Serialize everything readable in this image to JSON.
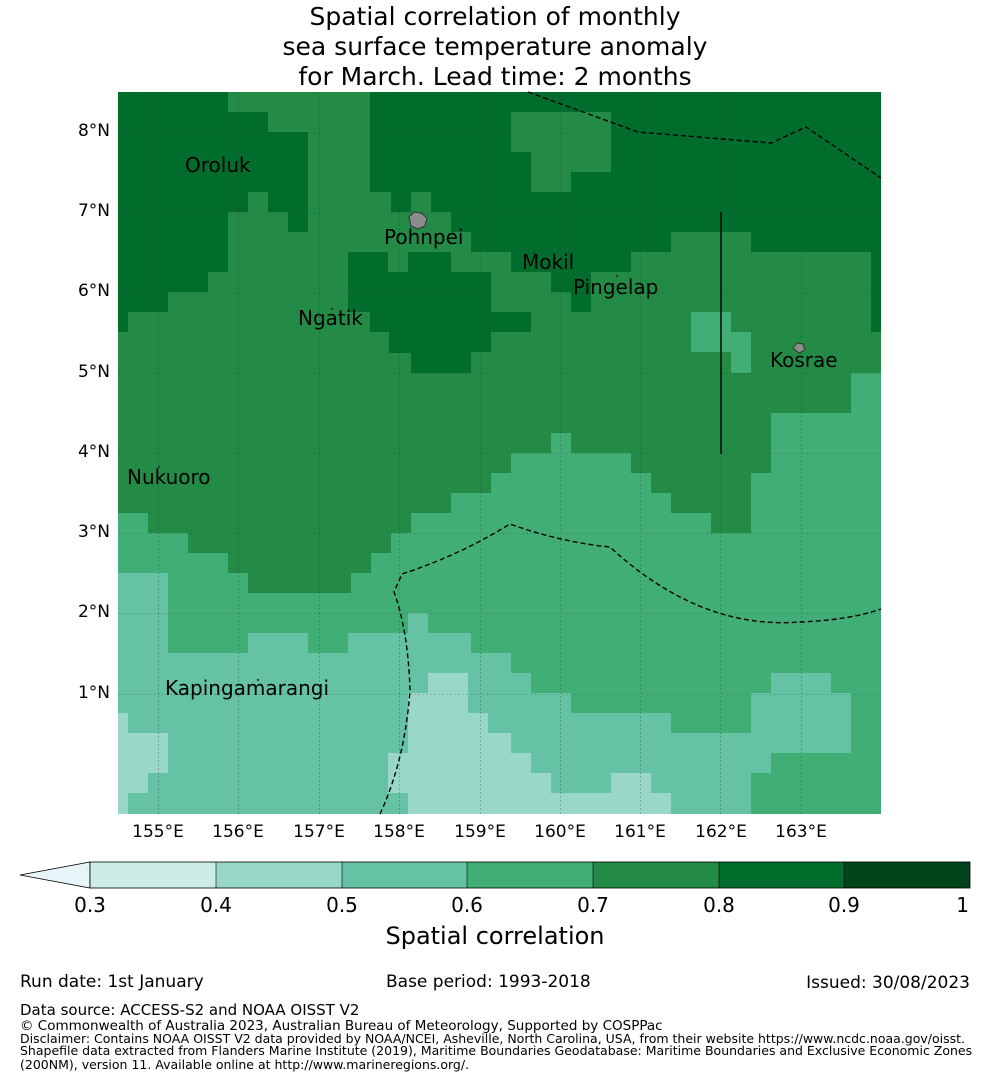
{
  "title": {
    "line1": "Spatial correlation of monthly",
    "line2": "sea surface temperature anomaly",
    "line3": "for March. Lead time: 2 months"
  },
  "map": {
    "lat_labels": [
      "8°N",
      "7°N",
      "6°N",
      "5°N",
      "4°N",
      "3°N",
      "2°N",
      "1°N"
    ],
    "lon_labels": [
      "155°E",
      "156°E",
      "157°E",
      "158°E",
      "159°E",
      "160°E",
      "161°E",
      "162°E",
      "163°E"
    ],
    "places": [
      {
        "name": "Oroluk"
      },
      {
        "name": "Pohnpei"
      },
      {
        "name": "Mokil"
      },
      {
        "name": "Pingelap"
      },
      {
        "name": "Ngatik"
      },
      {
        "name": "Kosrae"
      },
      {
        "name": "Nukuoro"
      },
      {
        "name": "Kapingamarangi"
      }
    ],
    "colors": {
      "c03": "#ccece6",
      "c04": "#99d8c9",
      "c05": "#66c2a4",
      "c06": "#41ae76",
      "c07": "#238b45",
      "c08": "#006d2c",
      "c09": "#00441b",
      "below": "#e5f5f9"
    }
  },
  "colorbar": {
    "ticks": [
      "0.3",
      "0.4",
      "0.5",
      "0.6",
      "0.7",
      "0.8",
      "0.9",
      "1"
    ],
    "label": "Spatial correlation"
  },
  "footer": {
    "run_date": "Run date: 1st January",
    "base_period": "Base period: 1993-2018",
    "issued": "Issued: 30/08/2023",
    "data_source": "Data source: ACCESS-S2 and NOAA OISST V2",
    "copyright": "© Commonwealth of Australia 2023, Australian Bureau of Meteorology, Supported by COSPPac",
    "disclaimer1": "Disclaimer: Contains NOAA OISST V2 data provided by NOAA/NCEI, Asheville, North Carolina, USA, from their website https://www.ncdc.noaa.gov/oisst.",
    "disclaimer2": "Shapefile data extracted from Flanders Marine Institute (2019), Maritime Boundaries Geodatabase: Maritime Boundaries and Exclusive Economic Zones",
    "disclaimer3": "(200NM), version 11. Available online at http://www.marineregions.org/."
  }
}
